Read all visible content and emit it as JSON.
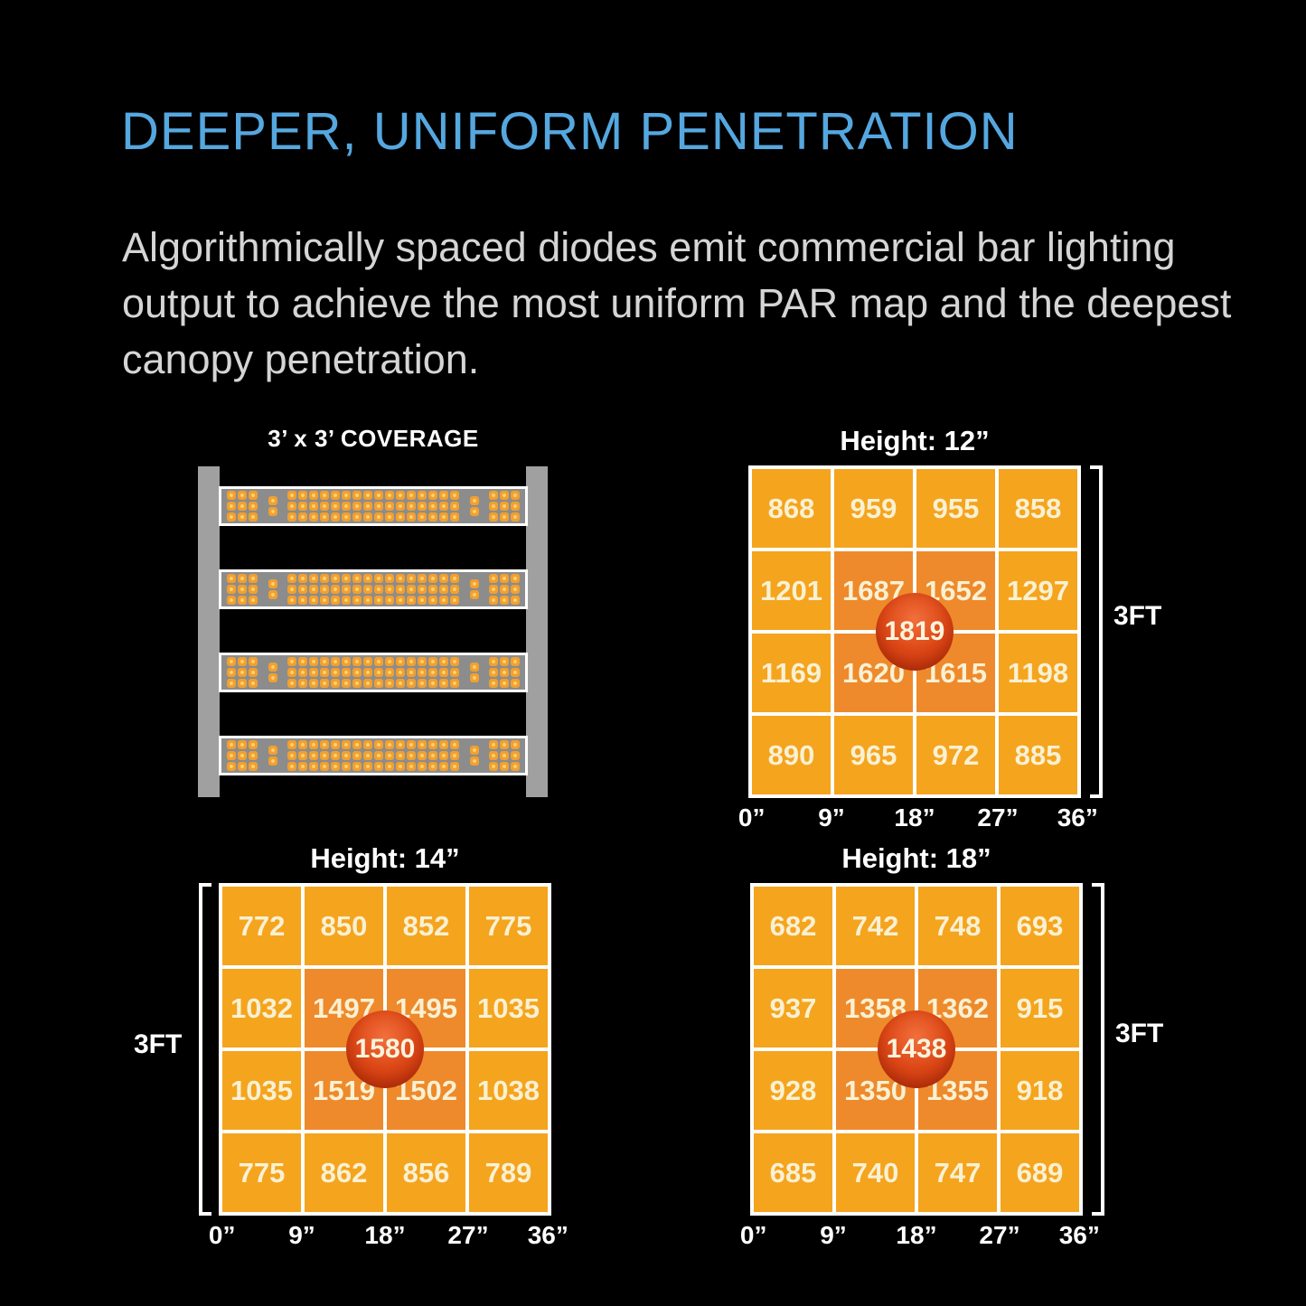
{
  "colors": {
    "background": "#000000",
    "accent_blue": "#55A7DF",
    "body_gray": "#D5D5D5",
    "grid_white": "#FFFFFF",
    "cell_orange": "#F5A41E",
    "cell_hot_orange": "#EE8A2B",
    "cell_text_cream": "#F9F1D3",
    "circle_red_light": "#F1703C",
    "circle_red": "#DD4817",
    "circle_red_dark": "#BC3309",
    "bar_gray": "#8C8C8C",
    "rail_gray": "#A0A0A0",
    "diode_orange": "#F1A031",
    "diode_glow": "#FFD36B",
    "diode_edge": "#C98421"
  },
  "header": {
    "title": "DEEPER, UNIFORM PENETRATION",
    "description": "Algorithmically spaced diodes emit commercial bar lighting output to achieve the most uniform PAR map and the deepest canopy penetration."
  },
  "coverage_diagram": {
    "title": "3’ x 3’ COVERAGE",
    "bar_count": 4,
    "diode_pattern": {
      "rows": 3,
      "left_cluster_cols": 3,
      "pair_rows": 2,
      "middle_cols": 16,
      "right_cluster_cols": 3
    }
  },
  "chart_data": [
    {
      "type": "heatmap",
      "title": "Height: 12”",
      "x_tick_labels": [
        "0”",
        "9”",
        "18”",
        "27”",
        "36”"
      ],
      "side_label": "3FT",
      "side_label_side": "right",
      "values": [
        [
          868,
          959,
          955,
          858
        ],
        [
          1201,
          1687,
          1652,
          1297
        ],
        [
          1169,
          1620,
          1615,
          1198
        ],
        [
          890,
          965,
          972,
          885
        ]
      ],
      "center_value": 1819
    },
    {
      "type": "heatmap",
      "title": "Height: 14”",
      "x_tick_labels": [
        "0”",
        "9”",
        "18”",
        "27”",
        "36”"
      ],
      "side_label": "3FT",
      "side_label_side": "left",
      "values": [
        [
          772,
          850,
          852,
          775
        ],
        [
          1032,
          1497,
          1495,
          1035
        ],
        [
          1035,
          1519,
          1502,
          1038
        ],
        [
          775,
          862,
          856,
          789
        ]
      ],
      "center_value": 1580
    },
    {
      "type": "heatmap",
      "title": "Height: 18”",
      "x_tick_labels": [
        "0”",
        "9”",
        "18”",
        "27”",
        "36”"
      ],
      "side_label": "3FT",
      "side_label_side": "right",
      "values": [
        [
          682,
          742,
          748,
          693
        ],
        [
          937,
          1358,
          1362,
          915
        ],
        [
          928,
          1350,
          1355,
          918
        ],
        [
          685,
          740,
          747,
          689
        ]
      ],
      "center_value": 1438
    }
  ]
}
